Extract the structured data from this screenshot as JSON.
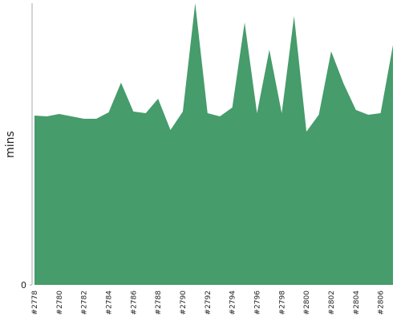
{
  "chart_data": {
    "type": "area",
    "y_label": "mins",
    "categories": [
      "#2778",
      null,
      "#2780",
      null,
      "#2782",
      null,
      "#2784",
      null,
      "#2786",
      null,
      "#2788",
      null,
      "#2790",
      null,
      "#2792",
      null,
      "#2794",
      null,
      "#2796",
      null,
      "#2798",
      null,
      "#2800",
      null,
      "#2802",
      null,
      "#2804",
      null,
      "#2806",
      null
    ],
    "values": [
      21.1,
      21.0,
      21.3,
      21.0,
      20.7,
      20.7,
      21.5,
      25.2,
      21.6,
      21.4,
      23.2,
      19.3,
      21.6,
      35.1,
      21.4,
      21.0,
      22.1,
      32.7,
      21.4,
      29.3,
      21.4,
      33.5,
      19.1,
      21.2,
      29.1,
      25.1,
      21.8,
      21.2,
      21.4,
      29.9
    ],
    "color": "#469c6b",
    "ylim": [
      0,
      35.1
    ],
    "yticks": [
      0
    ]
  }
}
